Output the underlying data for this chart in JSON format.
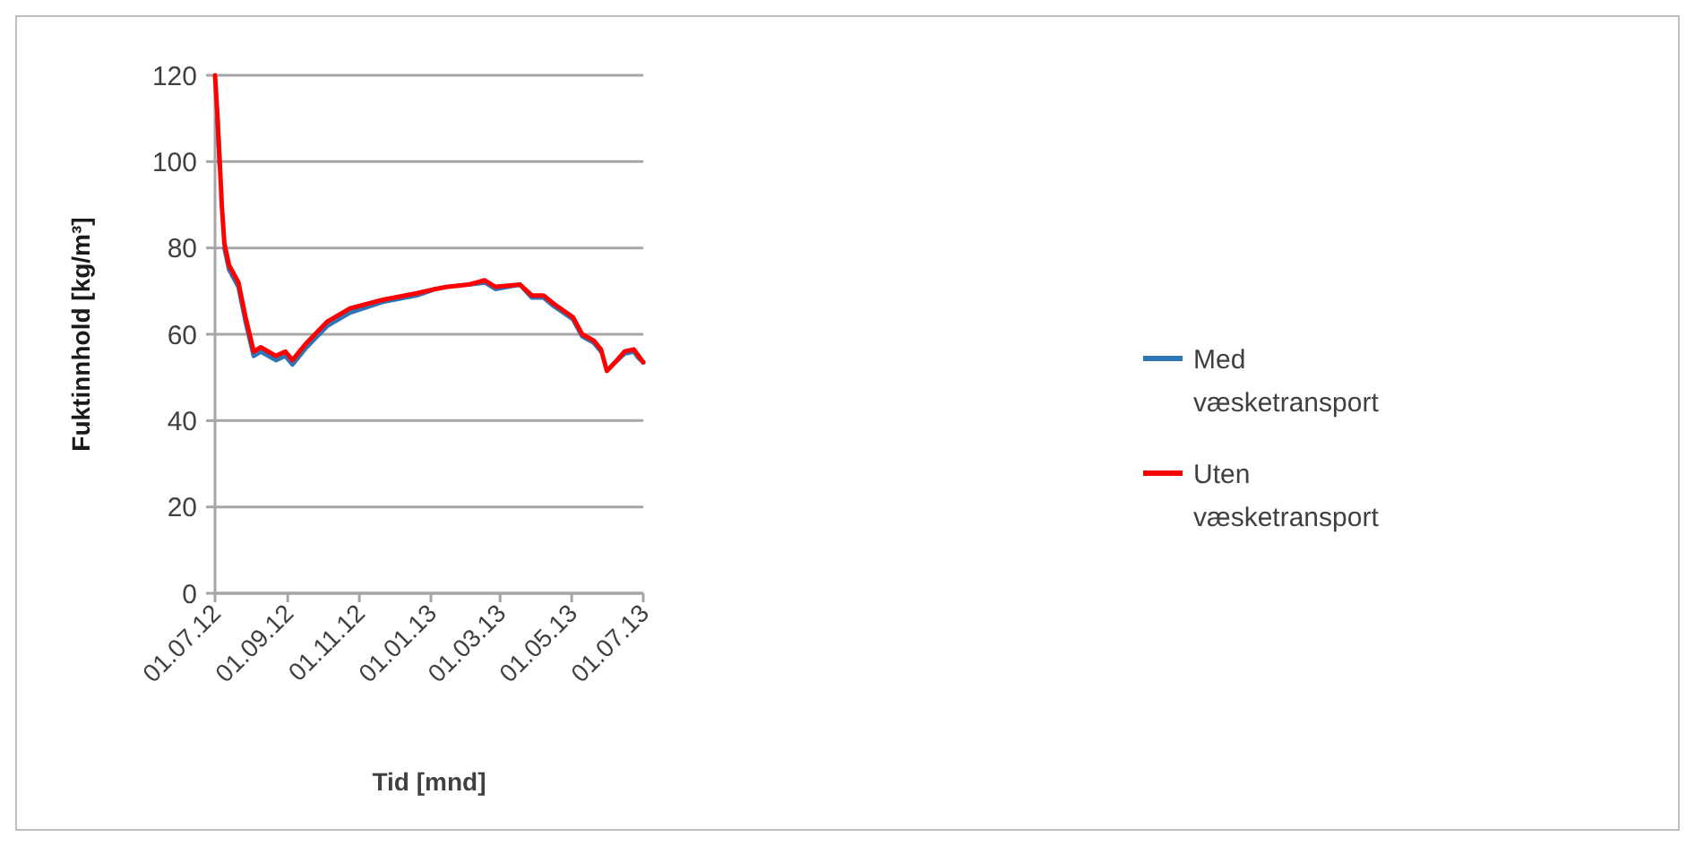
{
  "chart_data": {
    "type": "line",
    "xlabel": "Tid [mnd]",
    "ylabel": "Fuktinnhold  [kg/m³]",
    "x": [
      "2012-07-01",
      "2012-07-03",
      "2012-07-05",
      "2012-07-07",
      "2012-07-09",
      "2012-07-13",
      "2012-07-21",
      "2012-07-27",
      "2012-08-03",
      "2012-08-09",
      "2012-08-22",
      "2012-08-30",
      "2012-09-05",
      "2012-09-17",
      "2012-10-05",
      "2012-10-24",
      "2012-11-21",
      "2012-12-20",
      "2013-01-05",
      "2013-01-15",
      "2013-02-02",
      "2013-02-16",
      "2013-02-25",
      "2013-03-18",
      "2013-03-28",
      "2013-04-07",
      "2013-04-16",
      "2013-05-02",
      "2013-05-10",
      "2013-05-20",
      "2013-05-26",
      "2013-05-31",
      "2013-06-07",
      "2013-06-15",
      "2013-06-23",
      "2013-06-27",
      "2013-07-01"
    ],
    "series": [
      {
        "name": "Med væsketransport",
        "color": "#2e75b6",
        "values": [
          null,
          110,
          99,
          null,
          80,
          75,
          71,
          63,
          55,
          56,
          54,
          55,
          53,
          57,
          62,
          65,
          67.5,
          69,
          70.5,
          null,
          71.5,
          72,
          70.5,
          71.5,
          68.5,
          68.5,
          66.5,
          63.5,
          59.5,
          58,
          56,
          null,
          53.5,
          55.5,
          56,
          54.5,
          53.5
        ]
      },
      {
        "name": "Uten væsketransport",
        "color": "#ff0000",
        "values": [
          120,
          111,
          100,
          89,
          81,
          76,
          72,
          64,
          56,
          57,
          55,
          56,
          54,
          58,
          63,
          66,
          68,
          69.5,
          70.5,
          71,
          71.5,
          72.5,
          71,
          71.5,
          69,
          69,
          67,
          64,
          60,
          58.5,
          56.5,
          51.5,
          53.5,
          56,
          56.5,
          55,
          53.5
        ]
      }
    ],
    "xlim": [
      "2012-07-01",
      "2013-07-01"
    ],
    "xticks": [
      {
        "value": "2012-07-01",
        "label": "01.07.12"
      },
      {
        "value": "2012-09-01",
        "label": "01.09.12"
      },
      {
        "value": "2012-11-01",
        "label": "01.11.12"
      },
      {
        "value": "2013-01-01",
        "label": "01.01.13"
      },
      {
        "value": "2013-03-01",
        "label": "01.03.13"
      },
      {
        "value": "2013-05-01",
        "label": "01.05.13"
      },
      {
        "value": "2013-07-01",
        "label": "01.07.13"
      }
    ],
    "ylim": [
      0,
      120
    ],
    "yticks": [
      0,
      20,
      40,
      60,
      80,
      100,
      120
    ],
    "grid": "y",
    "legend": "right",
    "marker": "none",
    "line_style": "solid"
  }
}
